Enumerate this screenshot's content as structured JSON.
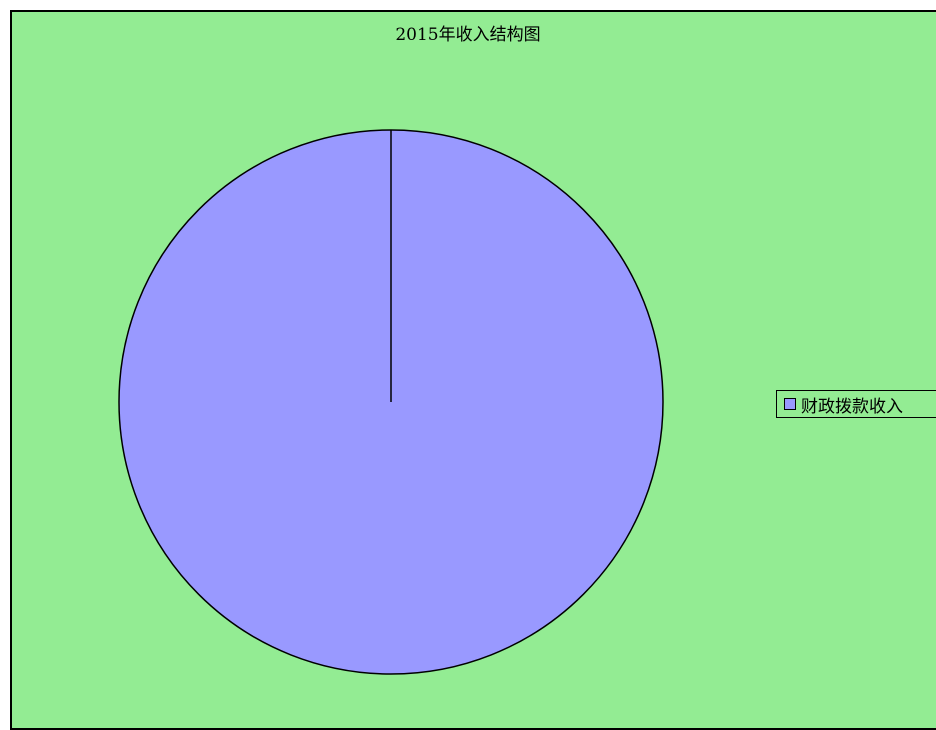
{
  "chart_data": {
    "type": "pie",
    "title": "2015年收入结构图",
    "categories": [
      "财政拨款收入"
    ],
    "values": [
      100
    ],
    "colors": [
      "#9999ff"
    ],
    "legend_position": "right",
    "background_color": "#93ec93"
  }
}
